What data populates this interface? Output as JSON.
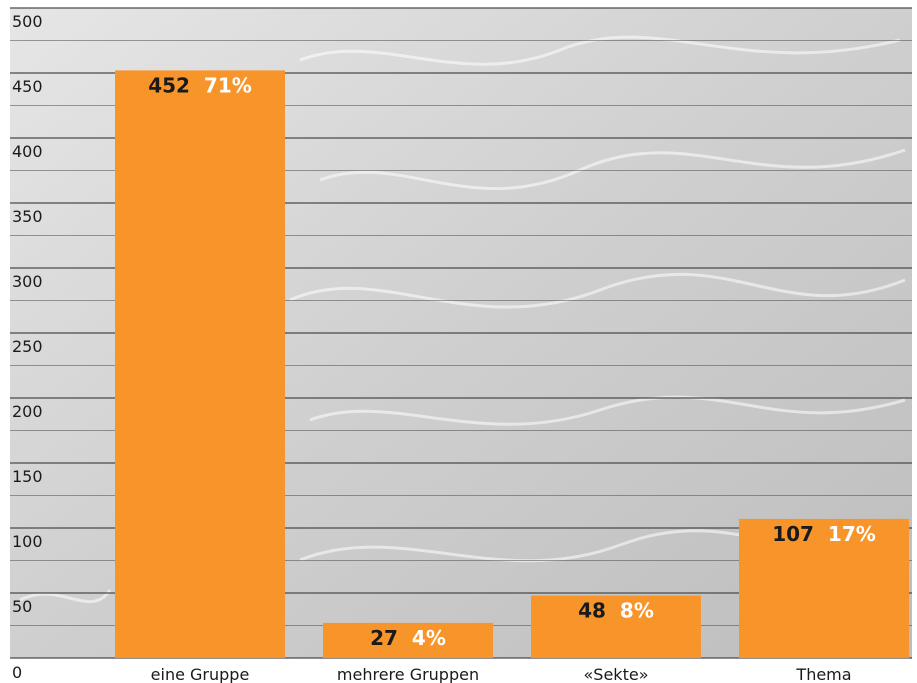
{
  "chart_data": {
    "type": "bar",
    "categories": [
      "eine Gruppe",
      "mehrere Gruppen",
      "«Sekte»",
      "Thema"
    ],
    "values": [
      452,
      27,
      48,
      107
    ],
    "percent_labels": [
      "71%",
      "4%",
      "8%",
      "17%"
    ],
    "value_labels": [
      "452",
      "27",
      "48",
      "107"
    ],
    "yticks": [
      "0",
      "50",
      "100",
      "150",
      "200",
      "250",
      "300",
      "350",
      "400",
      "450",
      "500"
    ],
    "ylim": [
      0,
      500
    ],
    "title": "",
    "xlabel": "",
    "ylabel": "",
    "grid": true,
    "legend": "none",
    "colors": {
      "bar": "#f7952a",
      "value_text": "#1a1a1a",
      "percent_text": "#ffffff",
      "grid": "#4a4a4a",
      "background": "#c9c9c9"
    }
  }
}
